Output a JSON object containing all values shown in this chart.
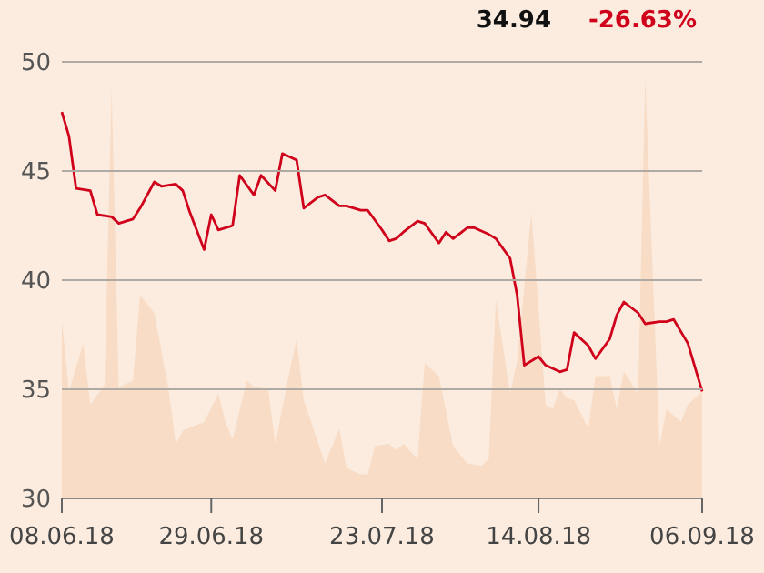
{
  "chart_data": {
    "type": "line",
    "annotations": [
      "34.94",
      "-26.63%"
    ],
    "xlim": [
      "2018-06-08",
      "2018-09-06"
    ],
    "xticks": [
      {
        "value": "2018-06-08",
        "label": "08.06.18"
      },
      {
        "value": "2018-06-29",
        "label": "29.06.18"
      },
      {
        "value": "2018-07-23",
        "label": "23.07.18"
      },
      {
        "value": "2018-08-14",
        "label": "14.08.18"
      },
      {
        "value": "2018-09-06",
        "label": "06.09.18"
      }
    ],
    "ylim": [
      30,
      50
    ],
    "yticks": [
      30,
      35,
      40,
      45,
      50
    ],
    "grid": "y",
    "series": [
      {
        "type": "area",
        "color": "#f8dcc6",
        "x": [
          "2018-06-08",
          "2018-06-09",
          "2018-06-11",
          "2018-06-12",
          "2018-06-14",
          "2018-06-15",
          "2018-06-16",
          "2018-06-18",
          "2018-06-19",
          "2018-06-21",
          "2018-06-23",
          "2018-06-24",
          "2018-06-25",
          "2018-06-28",
          "2018-06-30",
          "2018-07-01",
          "2018-07-02",
          "2018-07-04",
          "2018-07-05",
          "2018-07-07",
          "2018-07-08",
          "2018-07-10",
          "2018-07-11",
          "2018-07-12",
          "2018-07-15",
          "2018-07-17",
          "2018-07-18",
          "2018-07-20",
          "2018-07-21",
          "2018-07-22",
          "2018-07-24",
          "2018-07-25",
          "2018-07-26",
          "2018-07-28",
          "2018-07-29",
          "2018-07-31",
          "2018-08-02",
          "2018-08-04",
          "2018-08-06",
          "2018-08-07",
          "2018-08-08",
          "2018-08-10",
          "2018-08-11",
          "2018-08-13",
          "2018-08-15",
          "2018-08-16",
          "2018-08-17",
          "2018-08-18",
          "2018-08-19",
          "2018-08-21",
          "2018-08-22",
          "2018-08-24",
          "2018-08-25",
          "2018-08-26",
          "2018-08-28",
          "2018-08-29",
          "2018-08-31",
          "2018-09-01",
          "2018-09-03",
          "2018-09-04",
          "2018-09-06"
        ],
        "values": [
          38.2,
          34.9,
          37.1,
          34.3,
          35.2,
          48.8,
          35.1,
          35.4,
          39.3,
          38.5,
          35.0,
          32.5,
          33.1,
          33.5,
          34.8,
          33.5,
          32.7,
          35.4,
          35.1,
          35.0,
          32.5,
          35.8,
          37.3,
          34.5,
          31.6,
          33.2,
          31.4,
          31.1,
          31.1,
          32.4,
          32.5,
          32.2,
          32.5,
          31.8,
          36.2,
          35.6,
          32.4,
          31.6,
          31.5,
          31.8,
          39.1,
          34.8,
          36.3,
          43.1,
          34.3,
          34.1,
          35.0,
          34.6,
          34.5,
          33.2,
          35.6,
          35.6,
          34.1,
          35.8,
          34.8,
          49.2,
          32.4,
          34.1,
          33.5,
          34.3,
          34.9
        ]
      },
      {
        "color": "#d0021b",
        "x": [
          "2018-06-08",
          "2018-06-09",
          "2018-06-10",
          "2018-06-12",
          "2018-06-13",
          "2018-06-15",
          "2018-06-16",
          "2018-06-18",
          "2018-06-19",
          "2018-06-21",
          "2018-06-22",
          "2018-06-24",
          "2018-06-25",
          "2018-06-26",
          "2018-06-28",
          "2018-06-29",
          "2018-06-30",
          "2018-07-02",
          "2018-07-03",
          "2018-07-05",
          "2018-07-06",
          "2018-07-08",
          "2018-07-09",
          "2018-07-11",
          "2018-07-12",
          "2018-07-14",
          "2018-07-15",
          "2018-07-17",
          "2018-07-18",
          "2018-07-20",
          "2018-07-21",
          "2018-07-23",
          "2018-07-24",
          "2018-07-25",
          "2018-07-26",
          "2018-07-28",
          "2018-07-29",
          "2018-07-31",
          "2018-08-01",
          "2018-08-02",
          "2018-08-04",
          "2018-08-05",
          "2018-08-07",
          "2018-08-08",
          "2018-08-10",
          "2018-08-11",
          "2018-08-12",
          "2018-08-14",
          "2018-08-15",
          "2018-08-17",
          "2018-08-18",
          "2018-08-19",
          "2018-08-21",
          "2018-08-22",
          "2018-08-24",
          "2018-08-25",
          "2018-08-26",
          "2018-08-28",
          "2018-08-29",
          "2018-08-31",
          "2018-09-01",
          "2018-09-02",
          "2018-09-04",
          "2018-09-06"
        ],
        "values": [
          47.7,
          46.6,
          44.2,
          44.1,
          43.0,
          42.9,
          42.6,
          42.8,
          43.3,
          44.5,
          44.3,
          44.4,
          44.1,
          43.1,
          41.4,
          43.0,
          42.3,
          42.5,
          44.8,
          43.9,
          44.8,
          44.1,
          45.8,
          45.5,
          43.3,
          43.8,
          43.9,
          43.4,
          43.4,
          43.2,
          43.2,
          42.3,
          41.8,
          41.9,
          42.2,
          42.7,
          42.6,
          41.7,
          42.2,
          41.9,
          42.4,
          42.4,
          42.1,
          41.9,
          41.0,
          39.3,
          36.1,
          36.5,
          36.1,
          35.8,
          35.9,
          37.6,
          37.0,
          36.4,
          37.3,
          38.4,
          39.0,
          38.5,
          38.0,
          38.1,
          38.1,
          38.2,
          37.1,
          34.9
        ]
      }
    ]
  }
}
